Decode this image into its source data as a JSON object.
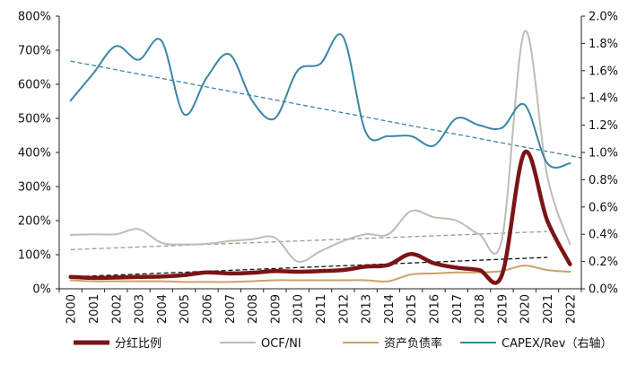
{
  "chart_data": {
    "type": "line",
    "title": "",
    "categories": [
      "2000",
      "2001",
      "2002",
      "2003",
      "2004",
      "2005",
      "2006",
      "2007",
      "2008",
      "2009",
      "2010",
      "2011",
      "2012",
      "2013",
      "2014",
      "2015",
      "2016",
      "2017",
      "2018",
      "2019",
      "2020",
      "2021",
      "2022"
    ],
    "y_left": {
      "min": 0,
      "max": 800,
      "step": 100,
      "format": "percent",
      "tick_labels": [
        "0%",
        "100%",
        "200%",
        "300%",
        "400%",
        "500%",
        "600%",
        "700%",
        "800%"
      ]
    },
    "y_right": {
      "min": 0,
      "max": 2.0,
      "step": 0.2,
      "format": "percent",
      "tick_labels": [
        "0.0%",
        "0.2%",
        "0.4%",
        "0.6%",
        "0.8%",
        "1.0%",
        "1.2%",
        "1.4%",
        "1.6%",
        "1.8%",
        "2.0%"
      ]
    },
    "series": [
      {
        "name": "分红比例",
        "axis": "left",
        "color": "#7B1416",
        "width": 4.5,
        "values": [
          35,
          32,
          33,
          35,
          36,
          40,
          48,
          45,
          47,
          52,
          50,
          52,
          55,
          65,
          70,
          102,
          75,
          62,
          55,
          40,
          400,
          200,
          72
        ]
      },
      {
        "name": "OCF/NI",
        "axis": "left",
        "color": "#BDBDB5",
        "width": 2,
        "values": [
          158,
          160,
          160,
          175,
          135,
          130,
          132,
          140,
          145,
          150,
          80,
          110,
          140,
          160,
          160,
          228,
          210,
          200,
          160,
          145,
          755,
          330,
          130
        ]
      },
      {
        "name": "资产负债率",
        "axis": "left",
        "color": "#C9A36A",
        "width": 2,
        "values": [
          25,
          22,
          22,
          22,
          22,
          20,
          20,
          20,
          22,
          25,
          25,
          25,
          25,
          25,
          22,
          42,
          45,
          48,
          48,
          52,
          68,
          55,
          50
        ]
      },
      {
        "name": "CAPEX/Rev（右轴）",
        "axis": "right",
        "color": "#3A86A6",
        "width": 2,
        "values": [
          1.38,
          1.58,
          1.78,
          1.68,
          1.82,
          1.28,
          1.55,
          1.72,
          1.38,
          1.25,
          1.6,
          1.65,
          1.85,
          1.15,
          1.12,
          1.12,
          1.05,
          1.25,
          1.2,
          1.18,
          1.35,
          0.92,
          0.92
        ]
      }
    ],
    "trendlines": [
      {
        "of": "分红比例",
        "style": "dashed",
        "color": "#111111",
        "axis": "left",
        "from_x": "2000",
        "from_y": 35,
        "to_x": "2021",
        "to_y": 92
      },
      {
        "of": "OCF/NI",
        "style": "dashed",
        "color": "#9A9A9A",
        "axis": "left",
        "from_x": "2000",
        "from_y": 115,
        "to_x": "2021",
        "to_y": 168
      },
      {
        "of": "CAPEX/Rev（右轴）",
        "style": "dashed",
        "color": "#3A86A6",
        "axis": "right",
        "from_x": "2000",
        "from_y": 1.67,
        "to_x": "2022",
        "to_y": 0.96
      }
    ],
    "legend": {
      "placement": "bottom",
      "entries": [
        "分红比例",
        "OCF/NI",
        "资产负债率",
        "CAPEX/Rev（右轴）"
      ]
    }
  }
}
